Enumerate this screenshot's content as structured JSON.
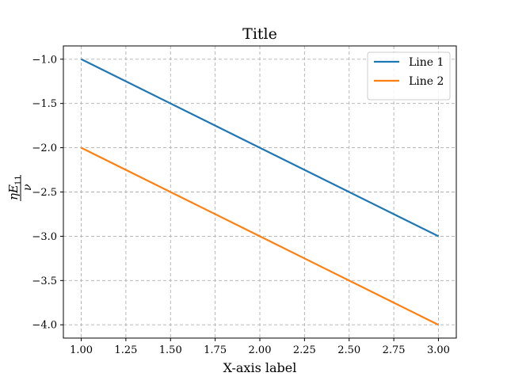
{
  "chart_data": {
    "type": "line",
    "title": "Title",
    "xlabel": "X-axis label",
    "ylabel": "ηE11/ν",
    "xlim": [
      0.9,
      3.1
    ],
    "ylim": [
      -4.15,
      -0.85
    ],
    "grid": true,
    "legend_position": "upper right",
    "x_ticks": [
      {
        "value": 1.0,
        "label": "1.00"
      },
      {
        "value": 1.25,
        "label": "1.25"
      },
      {
        "value": 1.5,
        "label": "1.50"
      },
      {
        "value": 1.75,
        "label": "1.75"
      },
      {
        "value": 2.0,
        "label": "2.00"
      },
      {
        "value": 2.25,
        "label": "2.25"
      },
      {
        "value": 2.5,
        "label": "2.50"
      },
      {
        "value": 2.75,
        "label": "2.75"
      },
      {
        "value": 3.0,
        "label": "3.00"
      }
    ],
    "y_ticks": [
      {
        "value": -1.0,
        "label": "−1.0"
      },
      {
        "value": -1.5,
        "label": "−1.5"
      },
      {
        "value": -2.0,
        "label": "−2.0"
      },
      {
        "value": -2.5,
        "label": "−2.5"
      },
      {
        "value": -3.0,
        "label": "−3.0"
      },
      {
        "value": -3.5,
        "label": "−3.5"
      },
      {
        "value": -4.0,
        "label": "−4.0"
      }
    ],
    "x": [
      1,
      2,
      3
    ],
    "series": [
      {
        "name": "Line 1",
        "color": "#1f77b4",
        "values": [
          -1,
          -2,
          -3
        ]
      },
      {
        "name": "Line 2",
        "color": "#ff7f0e",
        "values": [
          -2,
          -3,
          -4
        ]
      }
    ]
  }
}
